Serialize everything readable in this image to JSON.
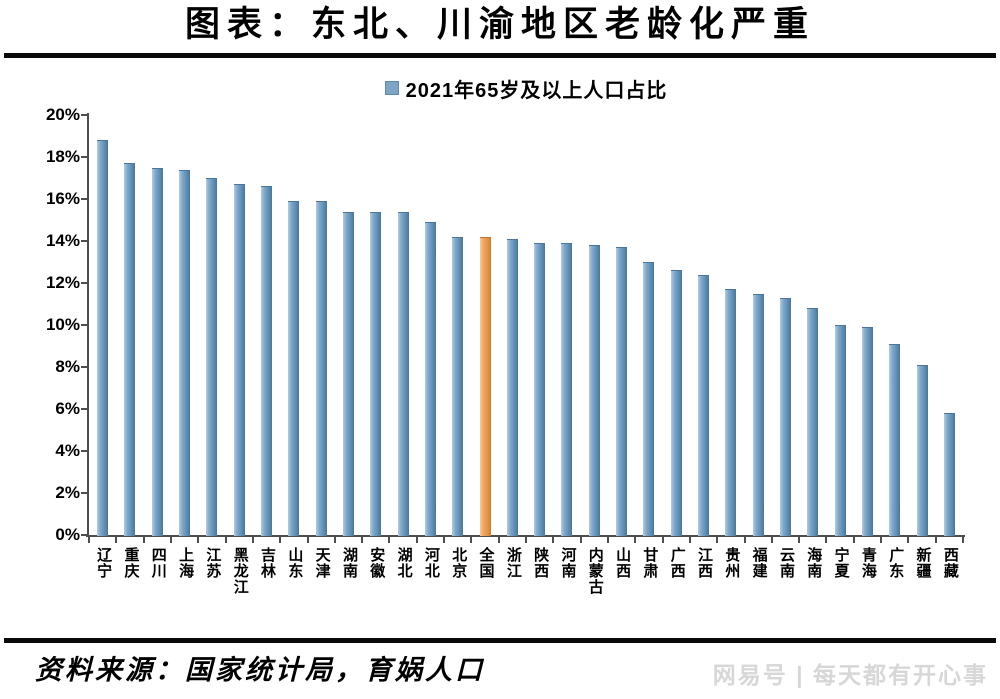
{
  "page": {
    "title": "图表：东北、川渝地区老龄化严重",
    "source_note": "资料来源：国家统计局，育娲人口",
    "watermark": "网易号 | 每天都有开心事"
  },
  "legend": {
    "label": "2021年65岁及以上人口占比",
    "marker_color": "#7ba6c8"
  },
  "chart_data": {
    "type": "bar",
    "title": "图表：东北、川渝地区老龄化严重",
    "legend": [
      "2021年65岁及以上人口占比"
    ],
    "legend_position": "top-center",
    "categories": [
      "辽宁",
      "重庆",
      "四川",
      "上海",
      "江苏",
      "黑龙江",
      "吉林",
      "山东",
      "天津",
      "湖南",
      "安徽",
      "湖北",
      "河北",
      "北京",
      "全国",
      "浙江",
      "陕西",
      "河南",
      "内蒙古",
      "山西",
      "甘肃",
      "广西",
      "江西",
      "贵州",
      "福建",
      "云南",
      "海南",
      "宁夏",
      "青海",
      "广东",
      "新疆",
      "西藏"
    ],
    "values": [
      18.8,
      17.7,
      17.5,
      17.4,
      17.0,
      16.7,
      16.6,
      15.9,
      15.9,
      15.4,
      15.4,
      15.4,
      14.9,
      14.2,
      14.2,
      14.1,
      13.9,
      13.9,
      13.8,
      13.7,
      13.0,
      12.6,
      12.4,
      11.7,
      11.5,
      11.3,
      10.8,
      10.0,
      9.9,
      9.1,
      8.1,
      5.8
    ],
    "unit": "%",
    "xlabel": "",
    "ylabel": "",
    "ylim": [
      0,
      20
    ],
    "ytick_step": 2,
    "ytick_labels": [
      "0%",
      "2%",
      "4%",
      "6%",
      "8%",
      "10%",
      "12%",
      "14%",
      "16%",
      "18%",
      "20%"
    ],
    "grid": false,
    "bar_color": "#6e9dc5",
    "highlight": {
      "category": "全国",
      "index": 14,
      "color": "#ec9a4e"
    }
  }
}
